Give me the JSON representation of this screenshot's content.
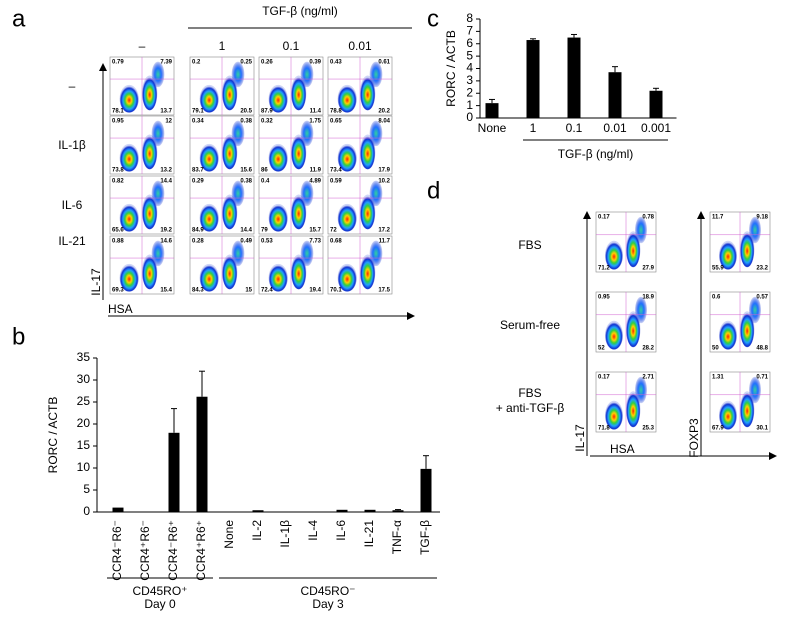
{
  "panel_a": {
    "letter": "a",
    "header": "TGF-β (ng/ml)",
    "columns": [
      "–",
      "1",
      "0.1",
      "0.01"
    ],
    "rows": [
      "–",
      "IL-1β",
      "IL-6",
      "IL-21"
    ],
    "y_label": "IL-17",
    "x_label": "HSA",
    "plots": [
      [
        [
          "0.79",
          "7.39",
          "78.1",
          "13.7"
        ],
        [
          "0.2",
          "0.25",
          "79.1",
          "20.5"
        ],
        [
          "0.26",
          "0.39",
          "87.9",
          "11.4"
        ],
        [
          "0.43",
          "0.61",
          "78.8",
          "20.2"
        ]
      ],
      [
        [
          "0.95",
          "12",
          "73.8",
          "13.2"
        ],
        [
          "0.34",
          "0.38",
          "83.7",
          "15.6"
        ],
        [
          "0.32",
          "1.75",
          "86",
          "11.9"
        ],
        [
          "0.65",
          "8.04",
          "73.4",
          "17.9"
        ]
      ],
      [
        [
          "0.82",
          "14.4",
          "65.6",
          "19.2"
        ],
        [
          "0.29",
          "0.38",
          "84.9",
          "14.4"
        ],
        [
          "0.4",
          "4.89",
          "79",
          "15.7"
        ],
        [
          "0.59",
          "10.2",
          "72",
          "17.2"
        ]
      ],
      [
        [
          "0.88",
          "14.6",
          "69.3",
          "15.4"
        ],
        [
          "0.28",
          "0.49",
          "84.3",
          "15"
        ],
        [
          "0.53",
          "7.73",
          "72.4",
          "19.4"
        ],
        [
          "0.68",
          "11.7",
          "70.1",
          "17.5"
        ]
      ]
    ]
  },
  "panel_d": {
    "letter": "d",
    "rows": [
      [
        "FBS"
      ],
      [
        "Serum-free"
      ],
      [
        "FBS",
        "+ anti-TGF-β"
      ]
    ],
    "y_labels": [
      "IL-17",
      "FOXP3"
    ],
    "x_label": "HSA",
    "plots": [
      [
        [
          "0.17",
          "0.78",
          "71.2",
          "27.9"
        ],
        [
          "11.7",
          "9.18",
          "55.9",
          "23.2"
        ]
      ],
      [
        [
          "0.95",
          "18.9",
          "52",
          "28.2"
        ],
        [
          "0.6",
          "0.57",
          "50",
          "48.8"
        ]
      ],
      [
        [
          "0.17",
          "2.71",
          "71.8",
          "25.3"
        ],
        [
          "1.31",
          "0.71",
          "67.9",
          "30.1"
        ]
      ]
    ]
  },
  "chart_data": [
    {
      "type": "bar",
      "letter": "b",
      "y_label": "RORC / ACTB",
      "categories": [
        "CCR4⁻R6⁻",
        "CCR4⁺R6⁻",
        "CCR4⁻R6⁺",
        "CCR4⁺R6⁺",
        "None",
        "IL-2",
        "IL-1β",
        "IL-4",
        "IL-6",
        "IL-21",
        "TNF-α",
        "TGF-β"
      ],
      "values": [
        1.0,
        0.1,
        18,
        26.2,
        0.1,
        0.4,
        0.1,
        0.1,
        0.5,
        0.5,
        0.4,
        9.8
      ],
      "errors": [
        0,
        0,
        5.5,
        5.8,
        0,
        0,
        0,
        0,
        0,
        0,
        0.15,
        3.0
      ],
      "color": "#000000",
      "groups": [
        [
          "CD45RO⁺",
          "Day 0"
        ],
        [
          "CD45RO⁻",
          "Day 3"
        ]
      ],
      "ylim": [
        0,
        35
      ],
      "yticks": [
        0,
        5,
        10,
        15,
        20,
        25,
        30,
        35
      ]
    },
    {
      "type": "bar",
      "letter": "c",
      "y_label": "RORC / ACTB",
      "x_label": "TGF-β (ng/ml)",
      "categories": [
        "None",
        "1",
        "0.1",
        "0.01",
        "0.001"
      ],
      "values": [
        1.2,
        6.3,
        6.5,
        3.7,
        2.2
      ],
      "errors": [
        0.3,
        0.1,
        0.25,
        0.45,
        0.2
      ],
      "color": "#000000",
      "ylim": [
        0,
        8
      ],
      "yticks": [
        0,
        1,
        2,
        3,
        4,
        5,
        6,
        7,
        8
      ]
    }
  ]
}
